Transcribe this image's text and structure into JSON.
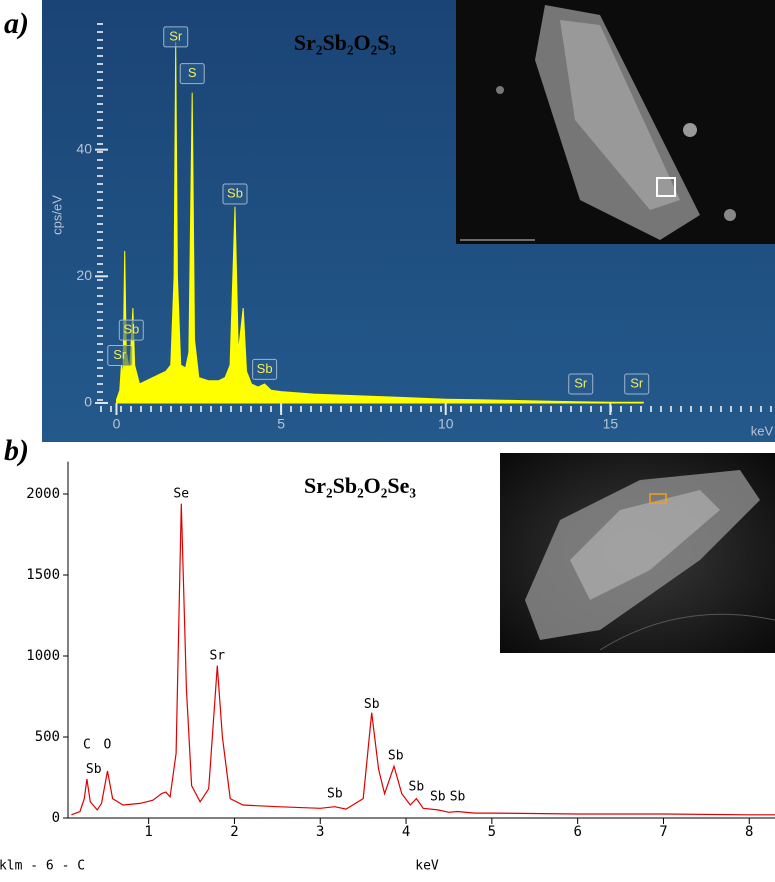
{
  "chart_data": [
    {
      "type": "area",
      "panel": "a)",
      "title": "Sr₂Sb₂O₂S₃",
      "y_label": "cps/eV",
      "x_label": "keV",
      "color": "#ffff00",
      "xlim": [
        -0.5,
        20
      ],
      "ylim": [
        -1,
        60
      ],
      "xticks": [
        0,
        5,
        10,
        15
      ],
      "yticks": [
        0,
        20,
        40
      ],
      "annotation_boxes": true,
      "x": [
        0,
        0.1,
        0.15,
        0.2,
        0.25,
        0.3,
        0.4,
        0.5,
        0.55,
        0.7,
        0.9,
        1.1,
        1.3,
        1.5,
        1.65,
        1.75,
        1.8,
        1.85,
        1.95,
        2.1,
        2.2,
        2.3,
        2.37,
        2.5,
        2.8,
        3.1,
        3.3,
        3.45,
        3.6,
        3.7,
        3.85,
        3.95,
        4.1,
        4.3,
        4.5,
        4.7,
        5,
        6,
        7,
        8,
        9,
        10,
        11,
        12,
        13,
        14,
        15,
        16
      ],
      "values": [
        0.5,
        2,
        6,
        4,
        24,
        8,
        5,
        15,
        6,
        3,
        3.5,
        4,
        4.5,
        5,
        6,
        20,
        57,
        20,
        6,
        5.5,
        8,
        49,
        10,
        4,
        3.5,
        3.5,
        4,
        6,
        31,
        8,
        15,
        5,
        3,
        2.5,
        3,
        2,
        1.8,
        1.4,
        1.2,
        1,
        0.8,
        0.6,
        0.5,
        0.4,
        0.3,
        0.2,
        0.1,
        0.1
      ],
      "annotations": [
        {
          "text": "Sr",
          "x": 1.8,
          "y": 57.8
        },
        {
          "text": "S",
          "x": 2.3,
          "y": 52
        },
        {
          "text": "Sb",
          "x": 3.6,
          "y": 33
        },
        {
          "text": "Sb",
          "x": 0.45,
          "y": 11.5
        },
        {
          "text": "Sr",
          "x": 0.1,
          "y": 7.5
        },
        {
          "text": "Sb",
          "x": 4.5,
          "y": 5.3
        },
        {
          "text": "Sr",
          "x": 14.1,
          "y": 3
        },
        {
          "text": "Sr",
          "x": 15.8,
          "y": 3
        }
      ]
    },
    {
      "type": "line",
      "panel": "b)",
      "title": "Sr₂Sb₂O₂Se₃",
      "x_label": "keV",
      "note": "klm - 6 - C",
      "color": "#e00000",
      "xlim": [
        0.06,
        8.3
      ],
      "ylim": [
        0,
        2200
      ],
      "xticks": [
        1,
        2,
        3,
        4,
        5,
        6,
        7,
        8
      ],
      "yticks": [
        0,
        500,
        1000,
        1500,
        2000
      ],
      "annotation_boxes": false,
      "x": [
        0.1,
        0.2,
        0.25,
        0.28,
        0.32,
        0.4,
        0.45,
        0.52,
        0.58,
        0.7,
        0.9,
        1.05,
        1.15,
        1.2,
        1.25,
        1.32,
        1.38,
        1.44,
        1.5,
        1.6,
        1.7,
        1.8,
        1.86,
        1.95,
        2.1,
        2.5,
        3.0,
        3.17,
        3.3,
        3.5,
        3.6,
        3.68,
        3.75,
        3.86,
        3.95,
        4.05,
        4.12,
        4.2,
        4.37,
        4.5,
        4.6,
        4.8,
        5,
        6,
        7,
        8,
        8.3
      ],
      "values": [
        20,
        40,
        120,
        240,
        100,
        50,
        90,
        290,
        120,
        80,
        90,
        110,
        150,
        160,
        130,
        400,
        1940,
        800,
        200,
        100,
        180,
        940,
        500,
        120,
        80,
        70,
        60,
        70,
        55,
        120,
        650,
        300,
        150,
        320,
        150,
        80,
        120,
        60,
        50,
        35,
        40,
        30,
        30,
        25,
        25,
        20,
        20
      ],
      "annotations": [
        {
          "text": "C",
          "x": 0.28,
          "y": 450
        },
        {
          "text": "O",
          "x": 0.52,
          "y": 450
        },
        {
          "text": "Sb",
          "x": 0.36,
          "y": 300
        },
        {
          "text": "Se",
          "x": 1.38,
          "y": 2000
        },
        {
          "text": "Sr",
          "x": 1.8,
          "y": 1000
        },
        {
          "text": "Sb",
          "x": 3.17,
          "y": 148
        },
        {
          "text": "Sb",
          "x": 3.6,
          "y": 700
        },
        {
          "text": "Sb",
          "x": 3.88,
          "y": 383
        },
        {
          "text": "Sb",
          "x": 4.12,
          "y": 191
        },
        {
          "text": "Sb",
          "x": 4.37,
          "y": 130
        },
        {
          "text": "Sb",
          "x": 4.6,
          "y": 130
        }
      ]
    }
  ]
}
